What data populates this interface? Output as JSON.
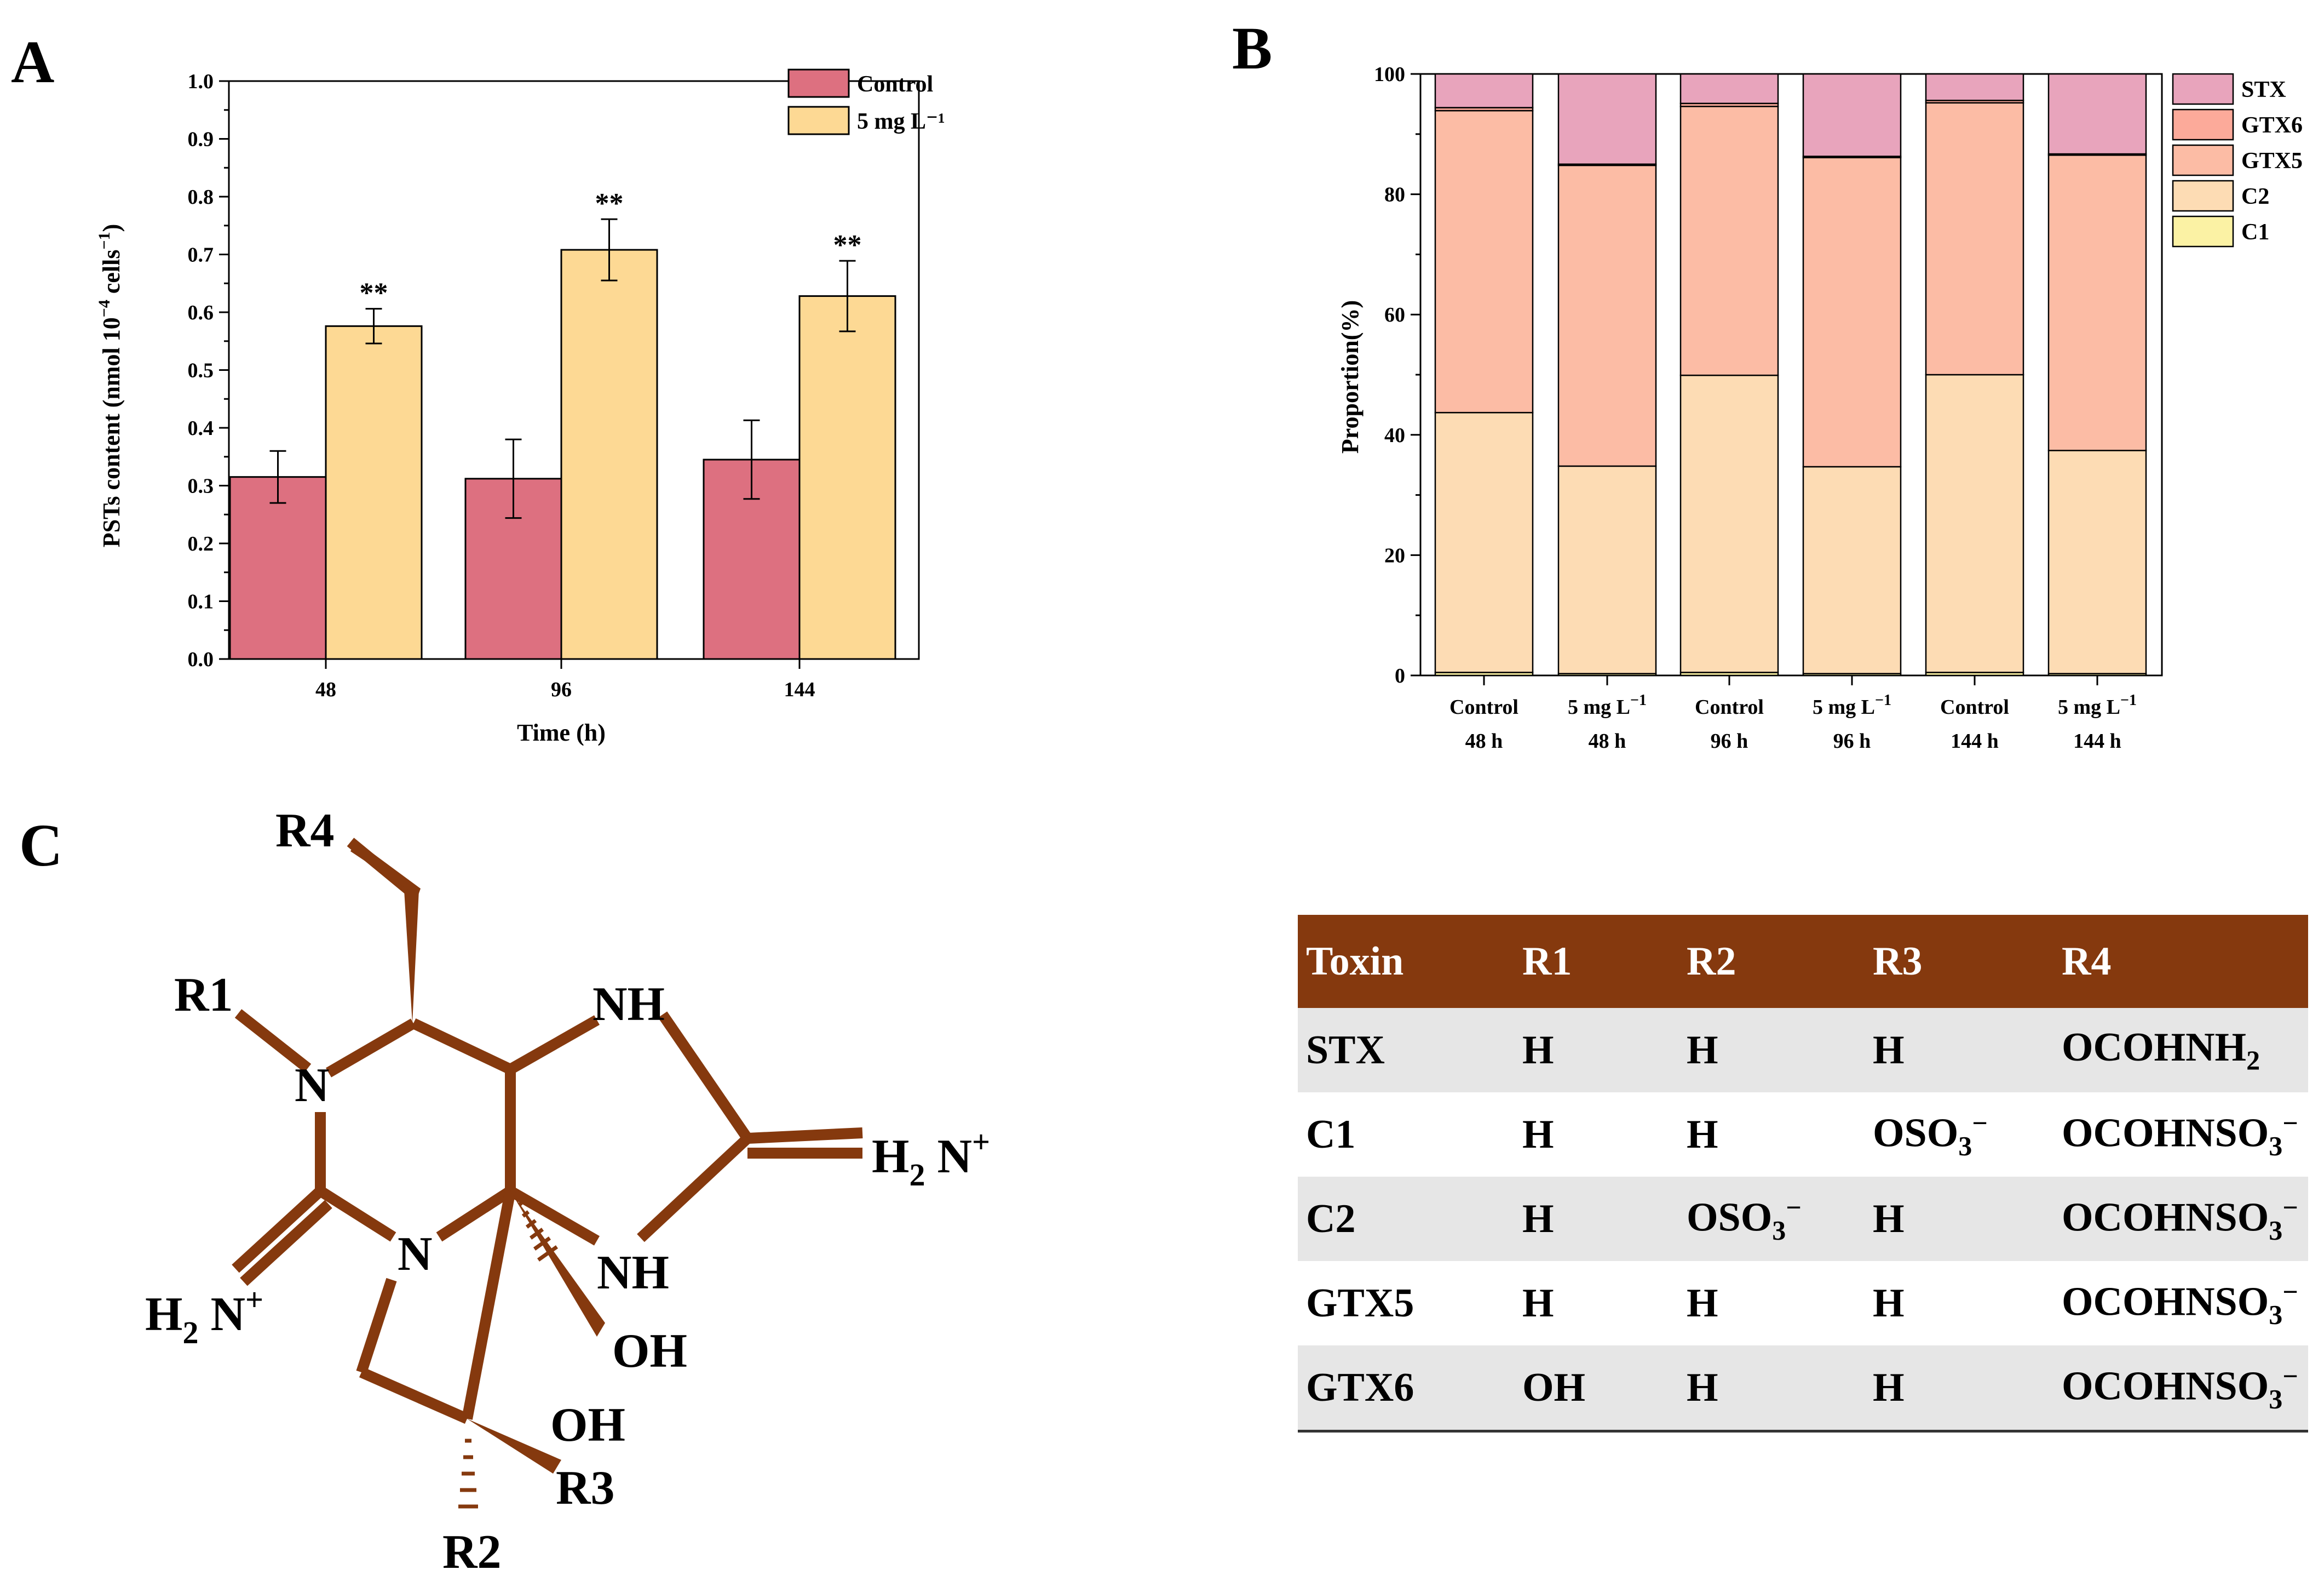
{
  "panels": {
    "a": "A",
    "b": "B",
    "c": "C"
  },
  "colors": {
    "control": "#dd7080",
    "treatment": "#fdd994",
    "STX": "#e8a4bc",
    "GTX6": "#fcaa9a",
    "GTX5": "#fcbca5",
    "C2": "#fddcb4",
    "C1": "#fbf2a4",
    "structure": "#85390e",
    "table_header": "#85390e"
  },
  "chart_data": [
    {
      "type": "bar",
      "xlabel": "Time (h)",
      "ylabel": "PSTs content (nmol 10⁻⁴ cells⁻¹)",
      "ylim": [
        0,
        1.0
      ],
      "yticks": [
        "0.0",
        "0.1",
        "0.2",
        "0.3",
        "0.4",
        "0.5",
        "0.6",
        "0.7",
        "0.8",
        "0.9",
        "1.0"
      ],
      "categories": [
        "48",
        "96",
        "144"
      ],
      "series": [
        {
          "name": "Control",
          "values": [
            0.315,
            0.312,
            0.345
          ],
          "errors": [
            0.045,
            0.068,
            0.068
          ],
          "sig": [
            "",
            "",
            ""
          ]
        },
        {
          "name": "5 mg L⁻¹",
          "values": [
            0.576,
            0.708,
            0.628
          ],
          "errors": [
            0.03,
            0.053,
            0.061
          ],
          "sig": [
            "**",
            "**",
            "**"
          ]
        }
      ],
      "legend": [
        "Control",
        "5 mg L⁻¹"
      ],
      "legend_position": "top-right"
    },
    {
      "type": "bar",
      "stacked": true,
      "ylabel": "Proportion(%)",
      "ylim": [
        0,
        100
      ],
      "yticks": [
        "0",
        "20",
        "40",
        "60",
        "80",
        "100"
      ],
      "categories": [
        [
          "Control",
          "48 h"
        ],
        [
          "5 mg L⁻¹",
          "48 h"
        ],
        [
          "Control",
          "96 h"
        ],
        [
          "5 mg L⁻¹",
          "96 h"
        ],
        [
          "Control",
          "144 h"
        ],
        [
          "5 mg L⁻¹",
          "144 h"
        ]
      ],
      "series": [
        {
          "name": "C1",
          "values": [
            0.5,
            0.3,
            0.5,
            0.3,
            0.5,
            0.3
          ]
        },
        {
          "name": "C2",
          "values": [
            43.2,
            34.5,
            49.4,
            34.4,
            49.5,
            37.1
          ]
        },
        {
          "name": "GTX5",
          "values": [
            50.2,
            50.0,
            44.7,
            51.4,
            45.2,
            49.1
          ]
        },
        {
          "name": "GTX6",
          "values": [
            0.5,
            0.2,
            0.5,
            0.2,
            0.4,
            0.2
          ]
        },
        {
          "name": "STX",
          "values": [
            5.6,
            15.0,
            4.9,
            13.7,
            4.4,
            13.3
          ]
        }
      ],
      "legend": [
        "STX",
        "GTX6",
        "GTX5",
        "C2",
        "C1"
      ],
      "legend_position": "top-right"
    }
  ],
  "structure": {
    "labels": {
      "r1": "R1",
      "r2": "R2",
      "r3": "R3",
      "r4": "R4",
      "n1": "N",
      "n2": "N",
      "nh1": "NH",
      "nh2": "NH",
      "oh1": "OH",
      "oh2": "OH",
      "h2n_left": "H",
      "h2n_left_sub": "2",
      "h2n_left_n": "N",
      "h2n_left_sup": "+",
      "h2n_right": "H",
      "h2n_right_sub": "2",
      "h2n_right_n": "N",
      "h2n_right_sup": "+"
    }
  },
  "table": {
    "headers": [
      "Toxin",
      "R1",
      "R2",
      "R3",
      "R4"
    ],
    "rows": [
      {
        "toxin": "STX",
        "r1": "H",
        "r2": "H",
        "r3": "H",
        "r4": "OCOHNH",
        "r4_sub": "2",
        "r4_sup": ""
      },
      {
        "toxin": "C1",
        "r1": "H",
        "r2": "H",
        "r3": "OSO",
        "r3_sub": "3",
        "r3_sup": "−",
        "r4": "OCOHNSO",
        "r4_sub": "3",
        "r4_sup": "−"
      },
      {
        "toxin": "C2",
        "r1": "H",
        "r2": "OSO",
        "r2_sub": "3",
        "r2_sup": "−",
        "r3": "H",
        "r4": "OCOHNSO",
        "r4_sub": "3",
        "r4_sup": "−"
      },
      {
        "toxin": "GTX5",
        "r1": "H",
        "r2": "H",
        "r3": "H",
        "r4": "OCOHNSO",
        "r4_sub": "3",
        "r4_sup": "−"
      },
      {
        "toxin": "GTX6",
        "r1": "OH",
        "r2": "H",
        "r3": "H",
        "r4": "OCOHNSO",
        "r4_sub": "3",
        "r4_sup": "−"
      }
    ]
  }
}
